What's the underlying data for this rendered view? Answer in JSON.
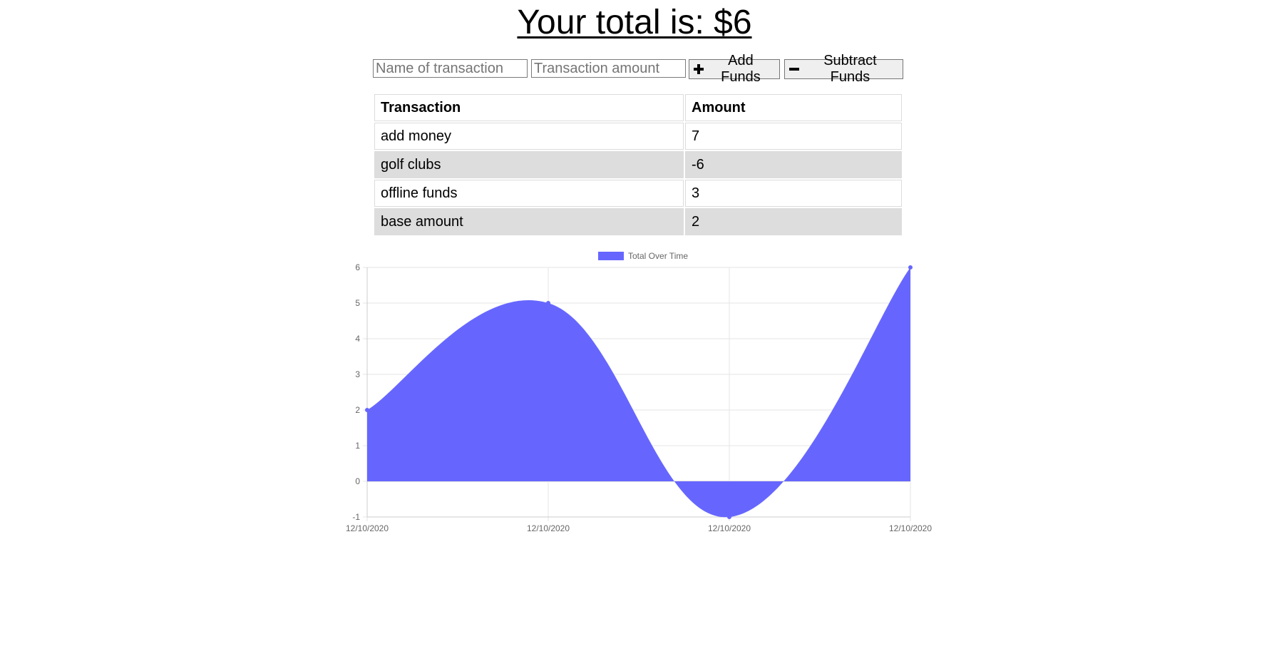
{
  "header": {
    "total_label": "Your total is: $6"
  },
  "form": {
    "name_placeholder": "Name of transaction",
    "amount_placeholder": "Transaction amount",
    "add_label": "Add Funds",
    "subtract_label": "Subtract Funds"
  },
  "table": {
    "headers": [
      "Transaction",
      "Amount"
    ],
    "rows": [
      {
        "name": "add money",
        "amount": "7"
      },
      {
        "name": "golf clubs",
        "amount": "-6"
      },
      {
        "name": "offline funds",
        "amount": "3"
      },
      {
        "name": "base amount",
        "amount": "2"
      }
    ]
  },
  "colors": {
    "series_fill": "#6666ff",
    "grid": "#e6e6e6",
    "axis": "#cccccc",
    "row_shade": "#dddddd"
  },
  "chart_data": {
    "type": "area",
    "x": [
      "12/10/2020",
      "12/10/2020",
      "12/10/2020",
      "12/10/2020"
    ],
    "series": [
      {
        "name": "Total Over Time",
        "values": [
          2,
          5,
          -1,
          6
        ]
      }
    ],
    "ylim": [
      -1,
      6
    ],
    "yticks": [
      -1,
      0,
      1,
      2,
      3,
      4,
      5,
      6
    ],
    "grid": true,
    "legend": "top-center",
    "title": "",
    "xlabel": "",
    "ylabel": ""
  }
}
